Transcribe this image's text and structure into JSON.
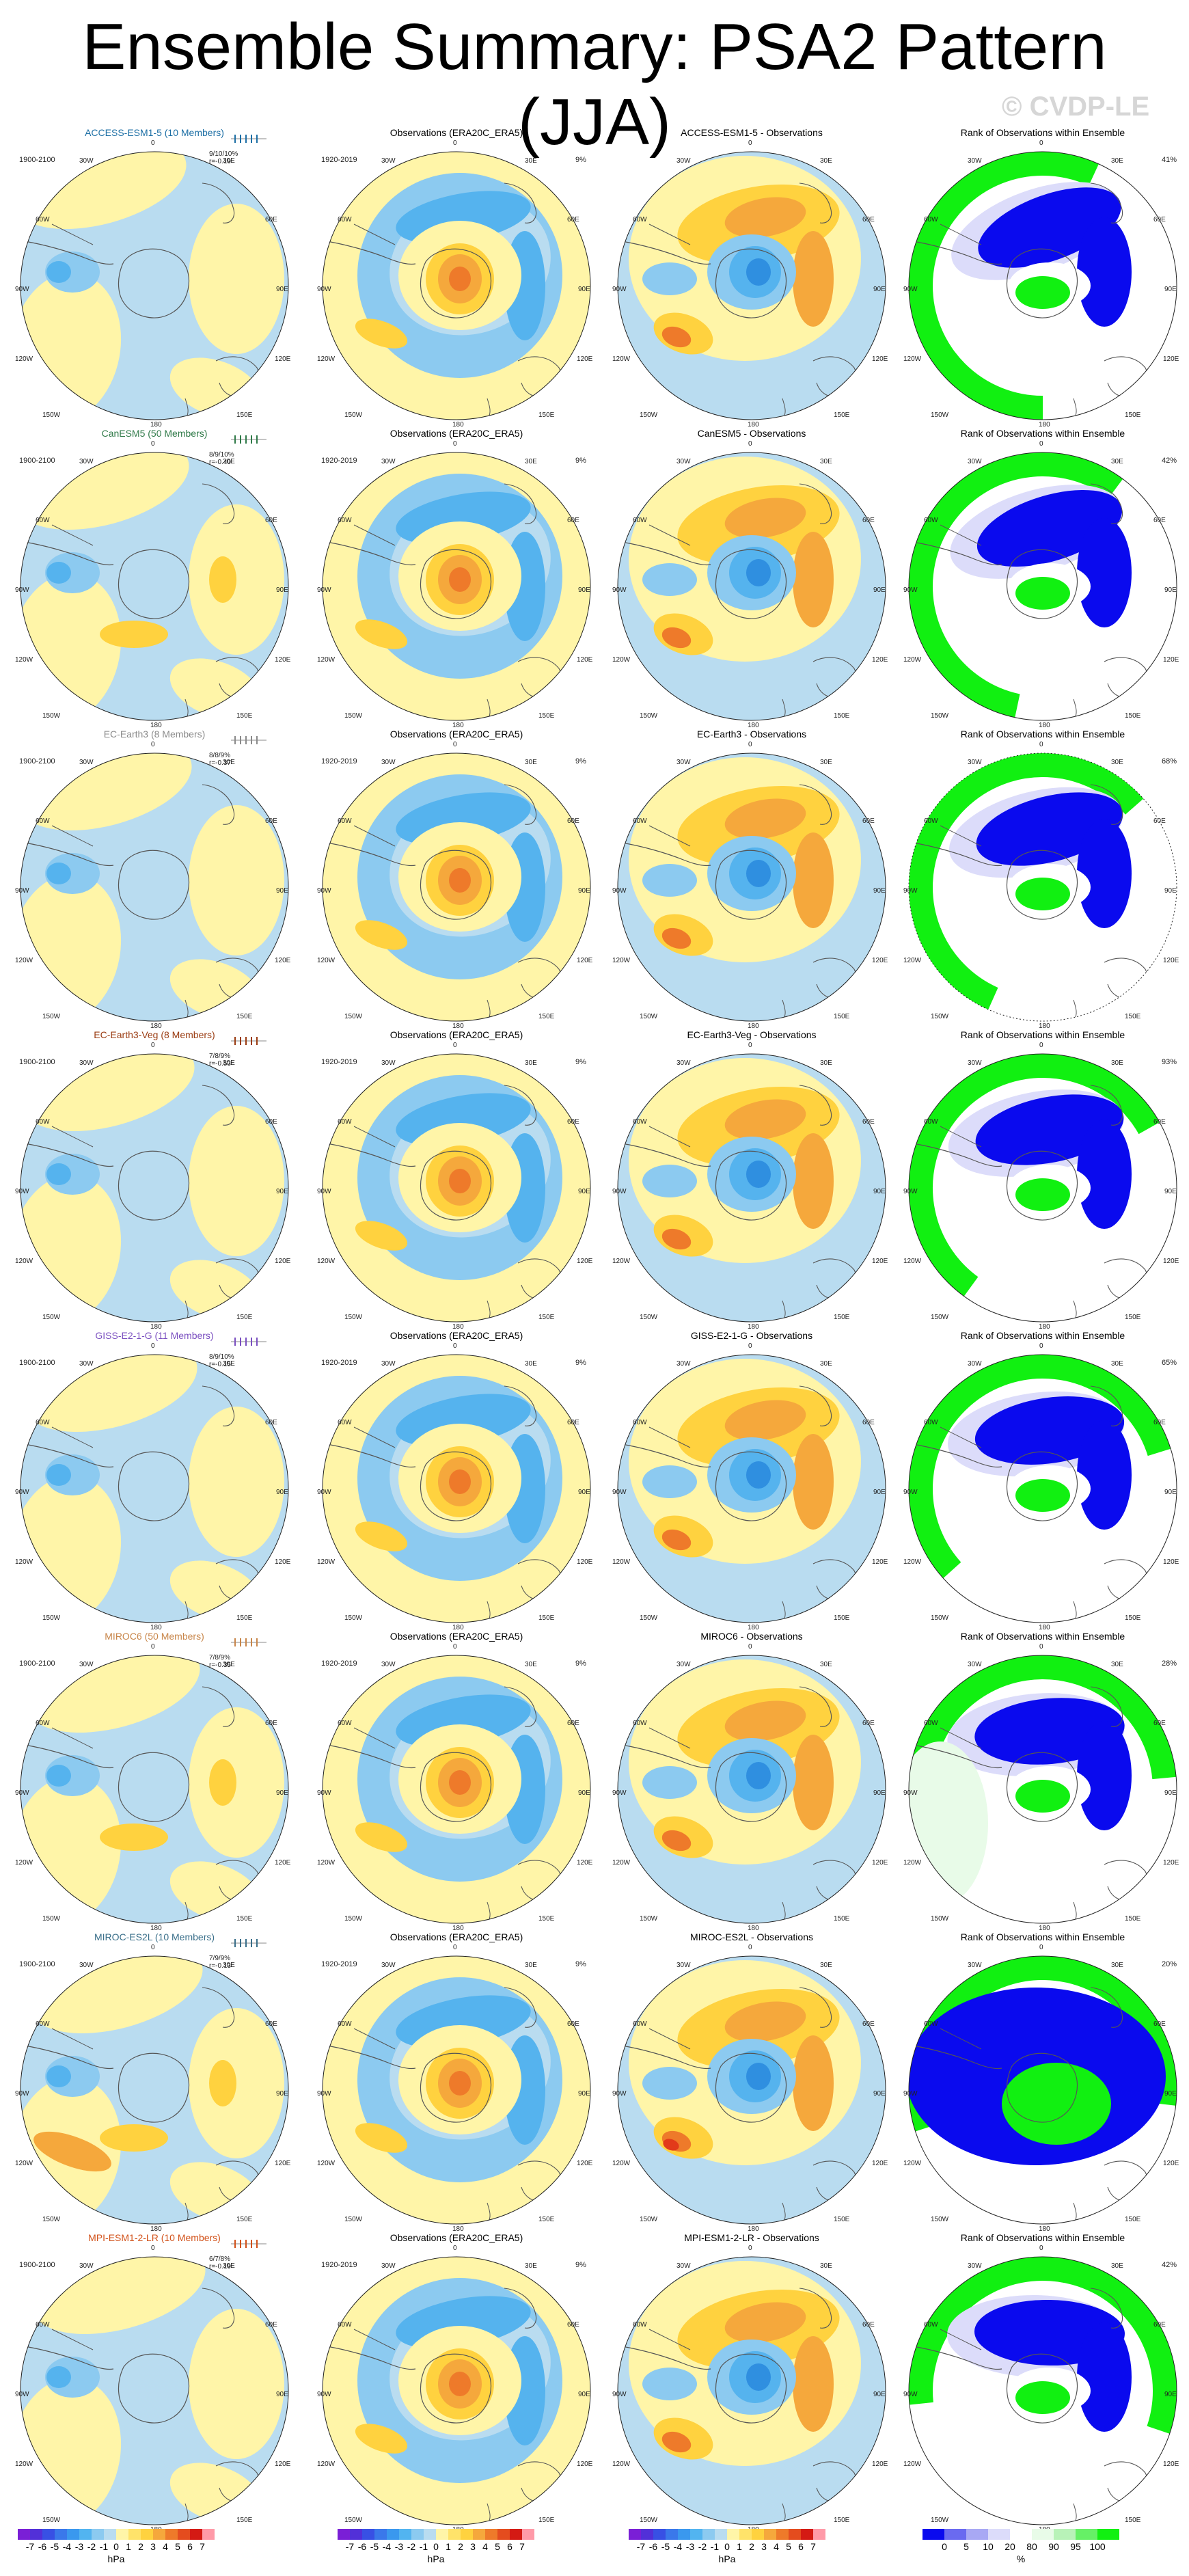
{
  "title": "Ensemble Summary: PSA2 Pattern (JJA)",
  "watermark": "© CVDP-LE",
  "colors": {
    "ocean": "#b9dcf0",
    "yellow": "#fff5a8",
    "orange1": "#ffd23f",
    "orange2": "#f5a83c",
    "orange3": "#ee7a2a",
    "red": "#e23a1a",
    "blue1": "#8ccaf0",
    "blue2": "#55b3ee",
    "blue3": "#2f8fe0",
    "rank_green": "#11f011",
    "rank_blue": "#0a0aee",
    "rank_lavender": "#dcdcfa",
    "rank_lightgreen": "#e8fbe8",
    "land": "#555555"
  },
  "obs_title": "Observations (ERA20C_ERA5)",
  "obs_period": "1920-2019",
  "obs_pct": "9%",
  "rank_title": "Rank of Observations within Ensemble",
  "lon_labels": {
    "top": "0",
    "tl": "30W",
    "tr": "30E",
    "ul": "60W",
    "ur": "60E",
    "l": "90W",
    "r": "90E",
    "ll": "120W",
    "lr": "120E",
    "bl": "150W",
    "br": "150E",
    "bottom": "180"
  },
  "rows": [
    {
      "model": "ACCESS-ESM1-5 (10 Members)",
      "model_color": "#1d6fa5",
      "period": "1900-2100",
      "stats_line1": "9/10/10%",
      "stats_line2": "r=-0.19",
      "diff_title": "ACCESS-ESM1-5 - Observations",
      "rank_pct": "41%",
      "pattern": 0
    },
    {
      "model": "CanESM5 (50 Members)",
      "model_color": "#2f7a48",
      "period": "1900-2100",
      "stats_line1": "8/9/10%",
      "stats_line2": "r=-0.40",
      "diff_title": "CanESM5 - Observations",
      "rank_pct": "42%",
      "pattern": 1
    },
    {
      "model": "EC-Earth3 (8 Members)",
      "model_color": "#8a8a8a",
      "period": "1900-2100",
      "stats_line1": "8/8/9%",
      "stats_line2": "r=-0.37",
      "diff_title": "EC-Earth3 - Observations",
      "rank_pct": "68%",
      "pattern": 2
    },
    {
      "model": "EC-Earth3-Veg (8 Members)",
      "model_color": "#9a3c12",
      "period": "1900-2100",
      "stats_line1": "7/8/9%",
      "stats_line2": "r=-0.53",
      "diff_title": "EC-Earth3-Veg - Observations",
      "rank_pct": "93%",
      "pattern": 3
    },
    {
      "model": "GISS-E2-1-G (11 Members)",
      "model_color": "#7a4fc0",
      "period": "1900-2100",
      "stats_line1": "8/9/10%",
      "stats_line2": "r=-0.15",
      "diff_title": "GISS-E2-1-G - Observations",
      "rank_pct": "65%",
      "pattern": 4
    },
    {
      "model": "MIROC6 (50 Members)",
      "model_color": "#c8864a",
      "period": "1900-2100",
      "stats_line1": "7/8/9%",
      "stats_line2": "r=-0.35",
      "diff_title": "MIROC6 - Observations",
      "rank_pct": "28%",
      "pattern": 5
    },
    {
      "model": "MIROC-ES2L (10 Members)",
      "model_color": "#3a6f8a",
      "period": "1900-2100",
      "stats_line1": "7/9/9%",
      "stats_line2": "r=-0.13",
      "diff_title": "MIROC-ES2L - Observations",
      "rank_pct": "20%",
      "pattern": 6
    },
    {
      "model": "MPI-ESM1-2-LR (10 Members)",
      "model_color": "#d2521a",
      "period": "1900-2100",
      "stats_line1": "6/7/8%",
      "stats_line2": "r=-0.19",
      "diff_title": "MPI-ESM1-2-LR - Observations",
      "rank_pct": "42%",
      "pattern": 7
    }
  ],
  "colorbar_hpa": {
    "labels": [
      "-7",
      "-6",
      "-5",
      "-4",
      "-3",
      "-2",
      "-1",
      "0",
      "1",
      "2",
      "3",
      "4",
      "5",
      "6",
      "7"
    ],
    "unit": "hPa",
    "colors": [
      "#7a1fd6",
      "#5230d8",
      "#3850e4",
      "#3a78ea",
      "#3a98ee",
      "#52b4f0",
      "#8ccaf0",
      "#b9dcf0",
      "#fff5a8",
      "#ffe36a",
      "#ffd23f",
      "#f5a83c",
      "#ee7a2a",
      "#e44c1e",
      "#d41a14",
      "#ff9aa8"
    ]
  },
  "colorbar_rank": {
    "labels": [
      "0",
      "5",
      "10",
      "20",
      "80",
      "90",
      "95",
      "100"
    ],
    "unit": "%",
    "colors": [
      "#0a0aee",
      "#6a6af0",
      "#a8a8f4",
      "#dcdcfa",
      "#ffffff",
      "#e8fbe8",
      "#b8f2b8",
      "#66f066",
      "#11f011"
    ]
  }
}
